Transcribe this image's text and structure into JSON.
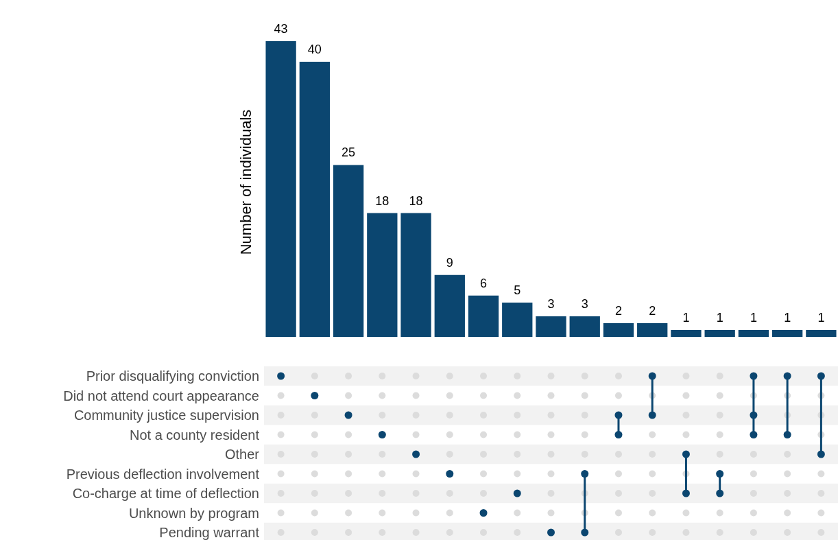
{
  "chart_data": [
    {
      "type": "bar",
      "ylabel": "Number of individuals",
      "categories": [
        null,
        null,
        null,
        null,
        null,
        null,
        null,
        null,
        null,
        null,
        null,
        null,
        null,
        null,
        null,
        null,
        null
      ],
      "values": [
        43,
        40,
        25,
        18,
        18,
        9,
        6,
        5,
        3,
        3,
        2,
        2,
        1,
        1,
        1,
        1,
        1
      ],
      "color": "#0b4670",
      "data_labels": true,
      "tick_labels": false,
      "grid": false,
      "legend": false
    },
    {
      "type": "other",
      "annotations": [
        "Prior disqualifying conviction",
        "Did not attend court appearance",
        "Community justice supervision",
        "Not a county resident",
        "Other",
        "Previous deflection involvement",
        "Co-charge at time of deflection",
        "Unknown by program",
        "Pending warrant"
      ]
    }
  ]
}
